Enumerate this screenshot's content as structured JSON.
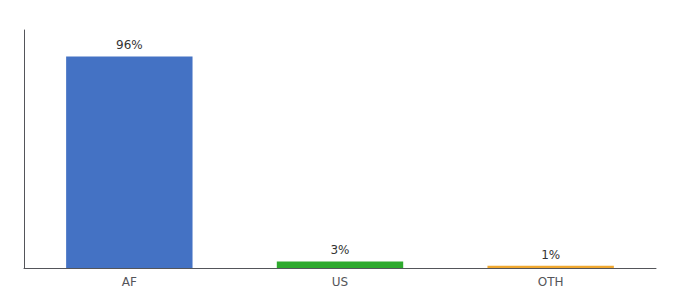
{
  "chart_data": {
    "type": "bar",
    "categories": [
      "AF",
      "US",
      "OTH"
    ],
    "values": [
      96,
      3,
      1
    ],
    "value_labels": [
      "96%",
      "3%",
      "1%"
    ],
    "colors": [
      "#4472c4",
      "#2eaa2e",
      "#f0a830"
    ],
    "ylim": [
      0,
      108
    ],
    "data_labels": true,
    "tick_labels": "x",
    "grid": false
  }
}
